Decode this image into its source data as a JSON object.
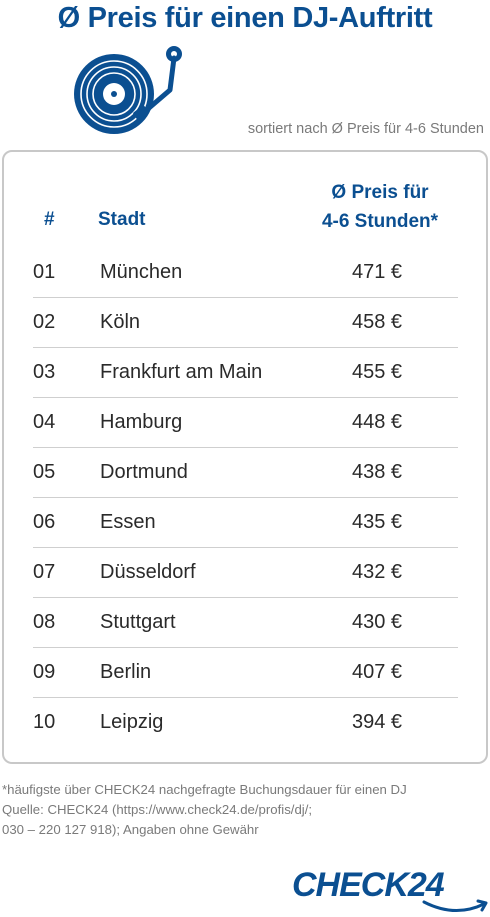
{
  "header": {
    "title": "Ø Preis für einen DJ-Auftritt",
    "subtitle": "sortiert nach Ø Preis für 4-6 Stunden",
    "illustration_icon": "vinyl-turntable-icon"
  },
  "table": {
    "columns": {
      "rank": "#",
      "city": "Stadt",
      "price_line1": "Ø Preis für",
      "price_line2": "4-6 Stunden*"
    },
    "rows": [
      {
        "rank": "01",
        "city": "München",
        "price": "471 €"
      },
      {
        "rank": "02",
        "city": "Köln",
        "price": "458 €"
      },
      {
        "rank": "03",
        "city": "Frankfurt am Main",
        "price": "455 €"
      },
      {
        "rank": "04",
        "city": "Hamburg",
        "price": "448 €"
      },
      {
        "rank": "05",
        "city": "Dortmund",
        "price": "438 €"
      },
      {
        "rank": "06",
        "city": "Essen",
        "price": "435 €"
      },
      {
        "rank": "07",
        "city": "Düsseldorf",
        "price": "432 €"
      },
      {
        "rank": "08",
        "city": "Stuttgart",
        "price": "430 €"
      },
      {
        "rank": "09",
        "city": "Berlin",
        "price": "407 €"
      },
      {
        "rank": "10",
        "city": "Leipzig",
        "price": "394 €"
      }
    ]
  },
  "footnote": {
    "line1": "*häufigste über CHECK24 nachgefragte Buchungsdauer für einen DJ",
    "line2": "Quelle: CHECK24 (https://www.check24.de/profis/dj/;",
    "line3": "030 – 220 127 918); Angaben ohne Gewähr"
  },
  "brand": {
    "logo_text": "CHECK24",
    "color": "#0b4f91"
  }
}
